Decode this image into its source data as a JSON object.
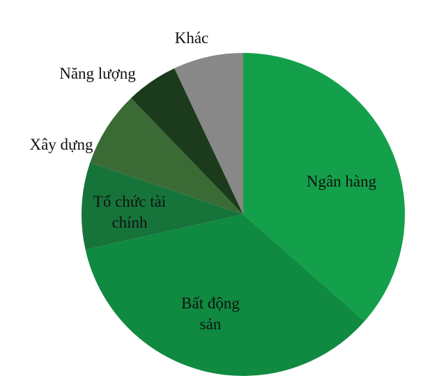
{
  "chart_data": {
    "type": "pie",
    "title": "",
    "start": "top",
    "direction": "clockwise",
    "slices": [
      {
        "label": "Ngân hàng",
        "label_lines": [
          "Ngân hàng"
        ],
        "value": 36.5,
        "color": "#14a04a",
        "label_inside": true
      },
      {
        "label": "Bất động sản",
        "label_lines": [
          "Bất động",
          "sản"
        ],
        "value": 35.0,
        "color": "#0f8a40",
        "label_inside": true
      },
      {
        "label": "Tổ chức tài chính",
        "label_lines": [
          "Tổ chức tài",
          "chính"
        ],
        "value": 8.7,
        "color": "#16743a",
        "label_inside": true
      },
      {
        "label": "Xây dựng",
        "label_lines": [
          "Xây dựng"
        ],
        "value": 7.6,
        "color": "#3a6b35",
        "label_inside": false
      },
      {
        "label": "Năng lượng",
        "label_lines": [
          "Năng lượng"
        ],
        "value": 5.2,
        "color": "#1c3a1c",
        "label_inside": false
      },
      {
        "label": "Khác",
        "label_lines": [
          "Khác"
        ],
        "value": 7.0,
        "color": "#888888",
        "label_inside": false
      }
    ]
  }
}
